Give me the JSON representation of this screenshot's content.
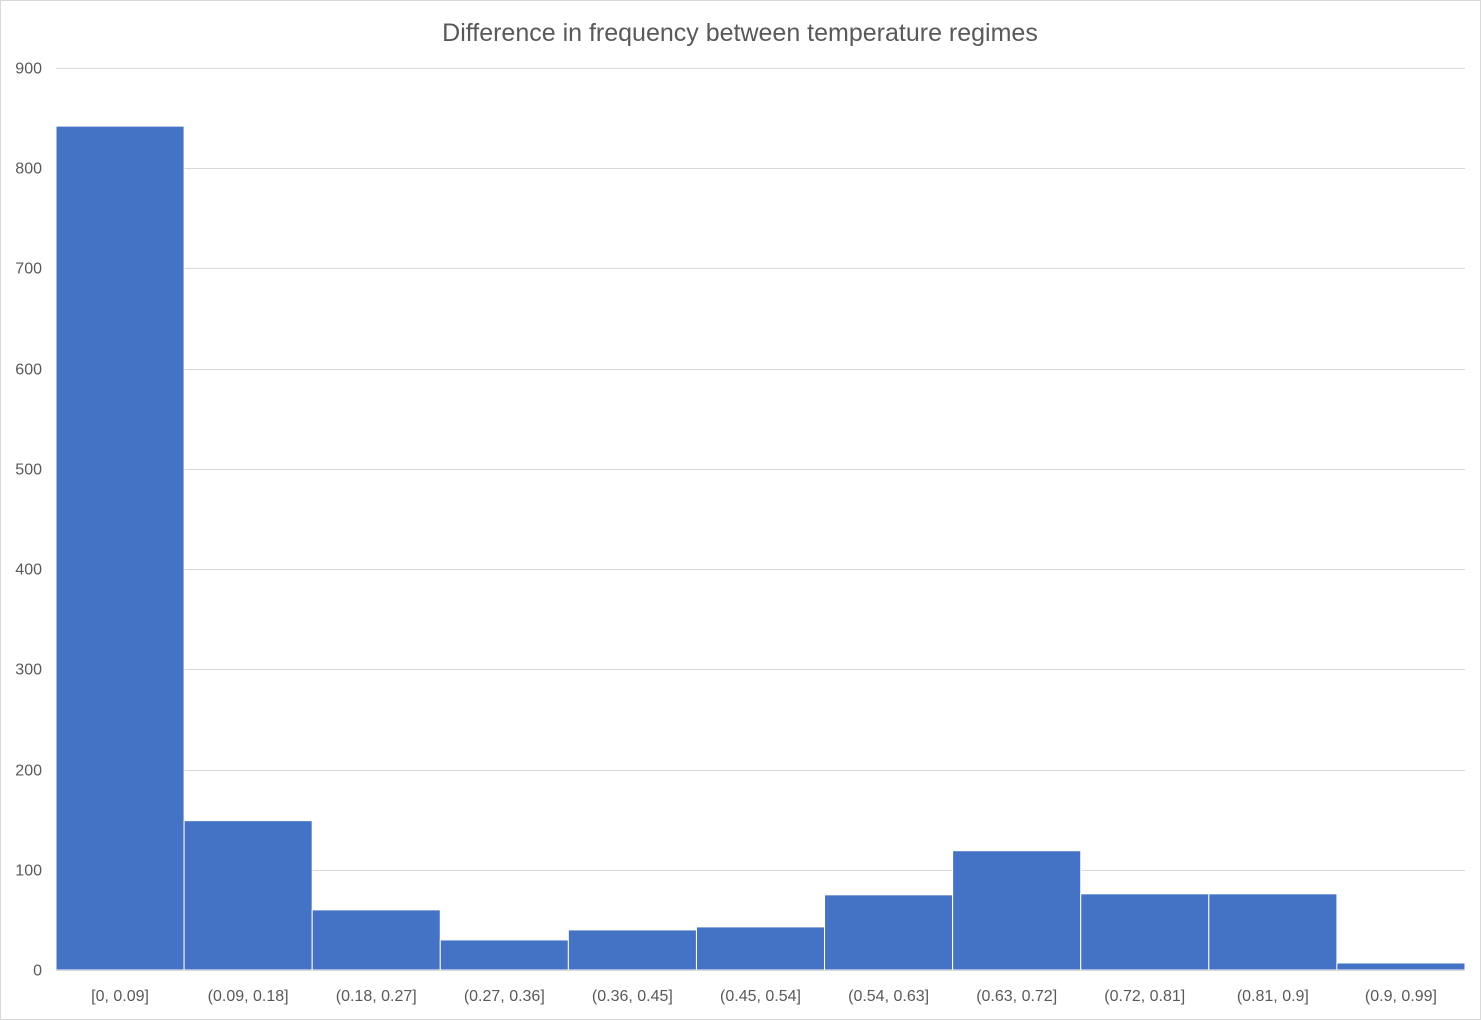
{
  "chart_data": {
    "type": "bar",
    "title": "Difference in frequency between temperature regimes",
    "xlabel": "",
    "ylabel": "",
    "categories": [
      "[0, 0.09]",
      "(0.09, 0.18]",
      "(0.18, 0.27]",
      "(0.27, 0.36]",
      "(0.36, 0.45]",
      "(0.45, 0.54]",
      "(0.54, 0.63]",
      "(0.63, 0.72]",
      "(0.72, 0.81]",
      "(0.81, 0.9]",
      "(0.9, 0.99]"
    ],
    "values": [
      842,
      149,
      60,
      30,
      40,
      43,
      75,
      119,
      76,
      76,
      7
    ],
    "ylim": [
      0,
      900
    ],
    "yticks": [
      "0",
      "100",
      "200",
      "300",
      "400",
      "500",
      "600",
      "700",
      "800",
      "900"
    ],
    "grid": true,
    "legend": "none",
    "bar_color": "#4472C4",
    "gridline_color": "#d9d9d9",
    "text_color": "#595959"
  }
}
